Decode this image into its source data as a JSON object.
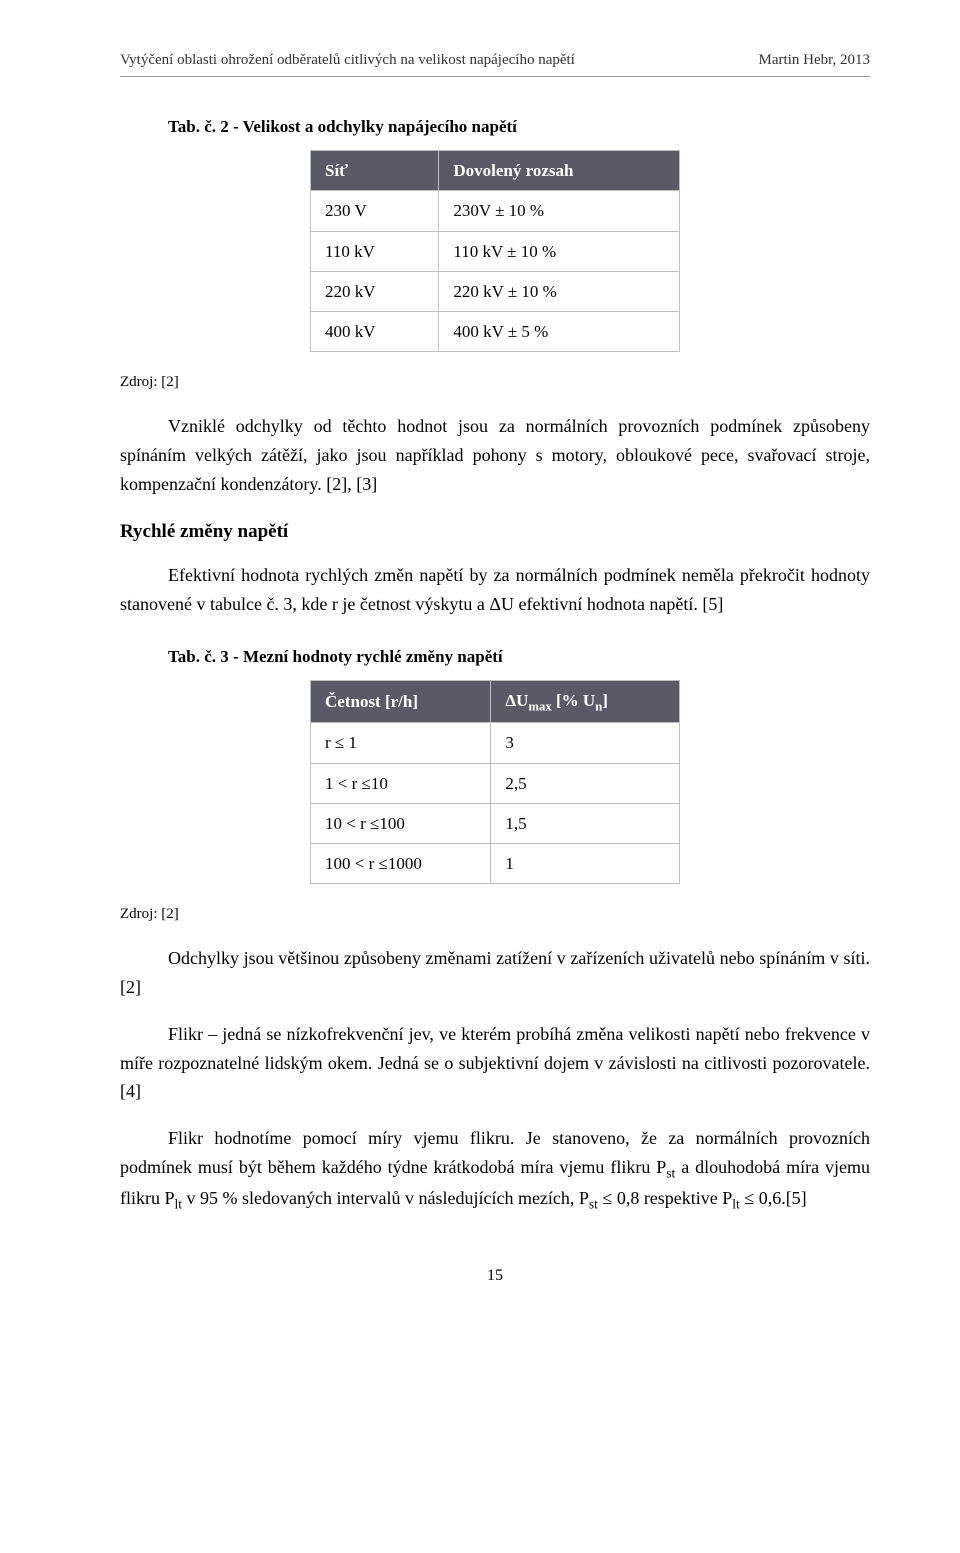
{
  "header": {
    "left": "Vytýčení oblasti ohrožení odběratelů citlivých na velikost napájecího napětí",
    "right": "Martin Hebr, 2013"
  },
  "tab2": {
    "caption": "Tab. č. 2 - Velikost a odchylky napájecího napětí",
    "col1": "Síť",
    "col2": "Dovolený rozsah",
    "rows": [
      {
        "c1": "230 V",
        "c2": "230V ± 10 %"
      },
      {
        "c1": "110 kV",
        "c2": "110 kV ± 10 %"
      },
      {
        "c1": "220 kV",
        "c2": "220 kV ± 10 %"
      },
      {
        "c1": "400 kV",
        "c2": "400 kV ± 5 %"
      }
    ]
  },
  "source_label": "Zdroj: [2]",
  "paragraphs": {
    "p1": "Vzniklé odchylky od těchto hodnot jsou za normálních provozních podmínek způsobeny spínáním velkých zátěží, jako jsou například pohony s motory, obloukové pece, svařovací stroje, kompenzační kondenzátory. [2], [3]",
    "rapid_heading": "Rychlé změny napětí",
    "p2": "Efektivní hodnota rychlých změn napětí by za normálních podmínek neměla překročit hodnoty stanovené v tabulce č. 3, kde r je četnost výskytu a ΔU efektivní hodnota napětí. [5]",
    "p3": "Odchylky jsou většinou způsobeny změnami zatížení v zařízeních uživatelů nebo spínáním v síti.[2]",
    "p4": "Flikr – jedná se nízkofrekvenční jev, ve kterém probíhá změna velikosti napětí nebo frekvence v míře rozpoznatelné lidským okem. Jedná se o subjektivní dojem v závislosti na citlivosti pozorovatele.[4]",
    "p5_a": "Flikr hodnotíme pomocí míry vjemu flikru. Je stanoveno, že za normálních provozních podmínek musí být během každého týdne krátkodobá míra vjemu flikru P",
    "p5_b": " a dlouhodobá míra vjemu flikru P",
    "p5_c": " v 95 % sledovaných intervalů v následujících mezích, P",
    "p5_d": " ≤ 0,8 respektive P",
    "p5_e": " ≤ 0,6.[5]",
    "sub_st": "st",
    "sub_lt": "lt"
  },
  "tab3": {
    "caption": "Tab. č. 3 - Mezní hodnoty rychlé změny napětí",
    "col1": "Četnost [r/h]",
    "col2_a": "ΔU",
    "col2_sub": "max",
    "col2_b": " [% U",
    "col2_sub2": "n",
    "col2_c": "]",
    "rows": [
      {
        "c1": "r ≤ 1",
        "c2": "3"
      },
      {
        "c1": "1 < r ≤10",
        "c2": "2,5"
      },
      {
        "c1": "10 < r ≤100",
        "c2": "1,5"
      },
      {
        "c1": "100 < r ≤1000",
        "c2": "1"
      }
    ]
  },
  "page_number": "15",
  "style": {
    "header_bg": "#5a5a66",
    "header_fg": "#ffffff",
    "border_color": "#bfbfbf"
  }
}
